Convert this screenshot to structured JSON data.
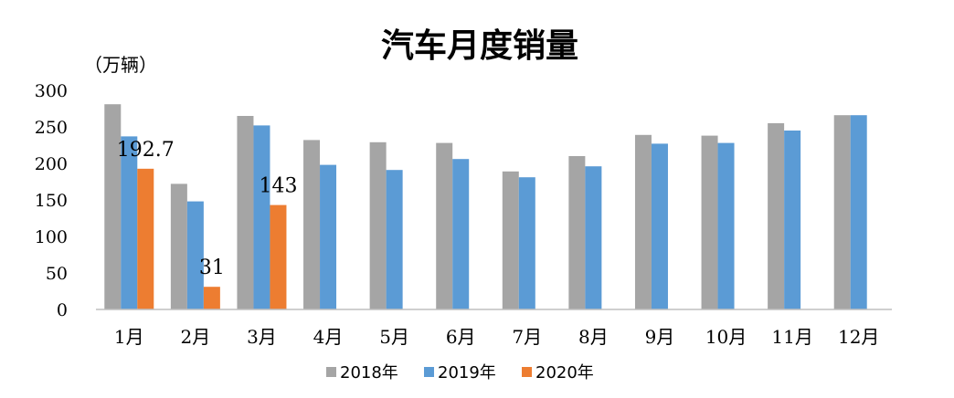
{
  "chart_data": {
    "type": "bar",
    "title": "汽车月度销量",
    "ylabel": "（万辆）",
    "xlabel": "",
    "ylim": [
      0,
      300
    ],
    "yticks": [
      0,
      50,
      100,
      150,
      200,
      250,
      300
    ],
    "categories": [
      "1月",
      "2月",
      "3月",
      "4月",
      "5月",
      "6月",
      "7月",
      "8月",
      "9月",
      "10月",
      "11月",
      "12月"
    ],
    "series": [
      {
        "name": "2018年",
        "color": "#a5a5a5",
        "values": [
          281,
          172,
          265,
          232,
          229,
          228,
          189,
          210,
          239,
          238,
          255,
          266
        ]
      },
      {
        "name": "2019年",
        "color": "#5b9bd5",
        "values": [
          237,
          148,
          252,
          198,
          191,
          206,
          181,
          196,
          227,
          228,
          245,
          266
        ]
      },
      {
        "name": "2020年",
        "color": "#ed7d31",
        "values": [
          192.7,
          31,
          143,
          null,
          null,
          null,
          null,
          null,
          null,
          null,
          null,
          null
        ]
      }
    ],
    "data_labels": [
      {
        "series": 2,
        "index": 0,
        "text": "192.7"
      },
      {
        "series": 2,
        "index": 1,
        "text": "31"
      },
      {
        "series": 2,
        "index": 2,
        "text": "143"
      }
    ],
    "grid": false,
    "legend": "bottom"
  }
}
